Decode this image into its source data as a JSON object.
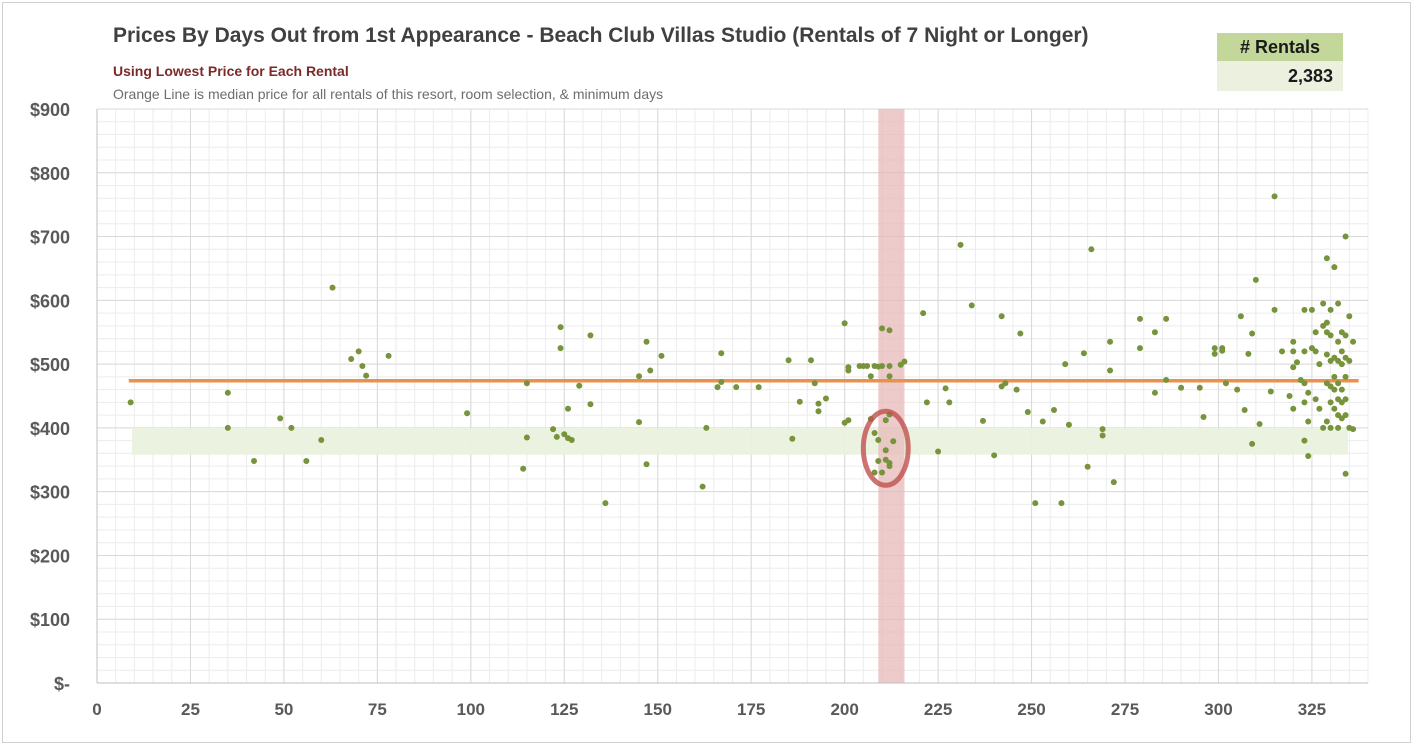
{
  "header": {
    "title": "Prices By Days Out from 1st Appearance - Beach Club Villas Studio (Rentals of 7 Night or Longer)",
    "subtitle": "Using Lowest Price for Each Rental",
    "note": "Orange Line is median price for all rentals of this resort, room selection, & minimum days"
  },
  "rentals_box": {
    "label": "# Rentals",
    "value": "2,383"
  },
  "colors": {
    "points": "#77933c",
    "median_line": "#e8924f",
    "highlight_band": "#ebf1de",
    "vertical_band": "#e6b9b8",
    "circle": "#c0504d",
    "grid": "#d9d9d9",
    "axis_text": "#595959"
  },
  "chart_data": {
    "type": "scatter",
    "title": "Prices By Days Out from 1st Appearance - Beach Club Villas Studio (Rentals of 7 Night or Longer)",
    "xlabel": "",
    "ylabel": "",
    "xlim": [
      0,
      340
    ],
    "ylim": [
      0,
      900
    ],
    "x_ticks": [
      0,
      25,
      50,
      75,
      100,
      125,
      150,
      175,
      200,
      225,
      250,
      275,
      300,
      325
    ],
    "x_tick_labels": [
      "0",
      "25",
      "50",
      "75",
      "100",
      "125",
      "150",
      "175",
      "200",
      "225",
      "250",
      "275",
      "300",
      "325"
    ],
    "y_ticks": [
      0,
      100,
      200,
      300,
      400,
      500,
      600,
      700,
      800,
      900
    ],
    "y_tick_labels": [
      "$-",
      "$100",
      "$200",
      "$300",
      "$400",
      "$500",
      "$600",
      "$700",
      "$800",
      "$900"
    ],
    "grid": true,
    "median_price": 474,
    "highlight_price_range": [
      358,
      400
    ],
    "highlight_days_range": [
      209,
      216
    ],
    "circled_region": {
      "x_center": 211,
      "y_center": 368,
      "x_radius": 6,
      "y_radius": 58
    },
    "points": [
      [
        9,
        440
      ],
      [
        35,
        455
      ],
      [
        35,
        400
      ],
      [
        42,
        348
      ],
      [
        49,
        415
      ],
      [
        52,
        400
      ],
      [
        56,
        348
      ],
      [
        60,
        381
      ],
      [
        63,
        620
      ],
      [
        68,
        508
      ],
      [
        70,
        520
      ],
      [
        71,
        497
      ],
      [
        72,
        482
      ],
      [
        78,
        513
      ],
      [
        99,
        423
      ],
      [
        114,
        336
      ],
      [
        115,
        385
      ],
      [
        115,
        470
      ],
      [
        122,
        398
      ],
      [
        123,
        386
      ],
      [
        124,
        558
      ],
      [
        124,
        525
      ],
      [
        125,
        390
      ],
      [
        126,
        430
      ],
      [
        126,
        384
      ],
      [
        127,
        381
      ],
      [
        129,
        466
      ],
      [
        132,
        545
      ],
      [
        132,
        437
      ],
      [
        136,
        282
      ],
      [
        145,
        481
      ],
      [
        145,
        409
      ],
      [
        147,
        535
      ],
      [
        147,
        343
      ],
      [
        148,
        490
      ],
      [
        151,
        513
      ],
      [
        162,
        308
      ],
      [
        163,
        400
      ],
      [
        166,
        464
      ],
      [
        167,
        517
      ],
      [
        167,
        472
      ],
      [
        171,
        464
      ],
      [
        177,
        464
      ],
      [
        185,
        506
      ],
      [
        186,
        383
      ],
      [
        188,
        441
      ],
      [
        191,
        506
      ],
      [
        192,
        470
      ],
      [
        193,
        438
      ],
      [
        193,
        426
      ],
      [
        195,
        446
      ],
      [
        200,
        564
      ],
      [
        200,
        408
      ],
      [
        201,
        490
      ],
      [
        201,
        495
      ],
      [
        201,
        412
      ],
      [
        204,
        497
      ],
      [
        205,
        497
      ],
      [
        206,
        497
      ],
      [
        207,
        481
      ],
      [
        207,
        414
      ],
      [
        208,
        497
      ],
      [
        208,
        392
      ],
      [
        208,
        330
      ],
      [
        209,
        381
      ],
      [
        209,
        348
      ],
      [
        209,
        496
      ],
      [
        210,
        556
      ],
      [
        210,
        497
      ],
      [
        210,
        330
      ],
      [
        211,
        365
      ],
      [
        211,
        412
      ],
      [
        211,
        350
      ],
      [
        212,
        553
      ],
      [
        212,
        497
      ],
      [
        212,
        481
      ],
      [
        212,
        421
      ],
      [
        212,
        340
      ],
      [
        212,
        345
      ],
      [
        213,
        379
      ],
      [
        215,
        499
      ],
      [
        216,
        504
      ],
      [
        221,
        580
      ],
      [
        222,
        440
      ],
      [
        225,
        363
      ],
      [
        227,
        462
      ],
      [
        228,
        440
      ],
      [
        231,
        687
      ],
      [
        234,
        592
      ],
      [
        237,
        411
      ],
      [
        240,
        357
      ],
      [
        242,
        465
      ],
      [
        242,
        575
      ],
      [
        243,
        470
      ],
      [
        246,
        460
      ],
      [
        247,
        548
      ],
      [
        249,
        425
      ],
      [
        251,
        282
      ],
      [
        253,
        410
      ],
      [
        256,
        428
      ],
      [
        258,
        282
      ],
      [
        259,
        500
      ],
      [
        260,
        405
      ],
      [
        264,
        517
      ],
      [
        265,
        339
      ],
      [
        266,
        680
      ],
      [
        269,
        398
      ],
      [
        269,
        388
      ],
      [
        271,
        535
      ],
      [
        271,
        490
      ],
      [
        272,
        315
      ],
      [
        279,
        571
      ],
      [
        279,
        525
      ],
      [
        283,
        550
      ],
      [
        283,
        455
      ],
      [
        286,
        571
      ],
      [
        286,
        475
      ],
      [
        290,
        463
      ],
      [
        295,
        463
      ],
      [
        296,
        417
      ],
      [
        299,
        516
      ],
      [
        299,
        525
      ],
      [
        301,
        525
      ],
      [
        301,
        521
      ],
      [
        302,
        470
      ],
      [
        305,
        460
      ],
      [
        306,
        575
      ],
      [
        307,
        428
      ],
      [
        308,
        516
      ],
      [
        309,
        375
      ],
      [
        309,
        548
      ],
      [
        310,
        632
      ],
      [
        311,
        406
      ],
      [
        314,
        457
      ],
      [
        315,
        763
      ],
      [
        315,
        585
      ],
      [
        317,
        520
      ],
      [
        319,
        450
      ],
      [
        320,
        520
      ],
      [
        320,
        535
      ],
      [
        320,
        495
      ],
      [
        320,
        430
      ],
      [
        321,
        503
      ],
      [
        322,
        475
      ],
      [
        323,
        470
      ],
      [
        323,
        380
      ],
      [
        323,
        585
      ],
      [
        323,
        520
      ],
      [
        323,
        440
      ],
      [
        324,
        356
      ],
      [
        324,
        410
      ],
      [
        324,
        455
      ],
      [
        325,
        585
      ],
      [
        325,
        525
      ],
      [
        326,
        550
      ],
      [
        326,
        445
      ],
      [
        326,
        520
      ],
      [
        327,
        430
      ],
      [
        327,
        500
      ],
      [
        328,
        560
      ],
      [
        328,
        400
      ],
      [
        328,
        595
      ],
      [
        329,
        565
      ],
      [
        329,
        550
      ],
      [
        329,
        515
      ],
      [
        329,
        470
      ],
      [
        329,
        410
      ],
      [
        329,
        666
      ],
      [
        330,
        585
      ],
      [
        330,
        545
      ],
      [
        330,
        505
      ],
      [
        330,
        465
      ],
      [
        330,
        440
      ],
      [
        330,
        400
      ],
      [
        331,
        510
      ],
      [
        331,
        480
      ],
      [
        331,
        460
      ],
      [
        331,
        430
      ],
      [
        331,
        652
      ],
      [
        332,
        595
      ],
      [
        332,
        535
      ],
      [
        332,
        505
      ],
      [
        332,
        470
      ],
      [
        332,
        445
      ],
      [
        332,
        420
      ],
      [
        332,
        400
      ],
      [
        333,
        550
      ],
      [
        333,
        520
      ],
      [
        333,
        500
      ],
      [
        333,
        460
      ],
      [
        333,
        440
      ],
      [
        333,
        415
      ],
      [
        334,
        545
      ],
      [
        334,
        510
      ],
      [
        334,
        480
      ],
      [
        334,
        445
      ],
      [
        334,
        420
      ],
      [
        334,
        700
      ],
      [
        334,
        328
      ],
      [
        335,
        575
      ],
      [
        335,
        505
      ],
      [
        335,
        400
      ],
      [
        336,
        535
      ],
      [
        336,
        398
      ]
    ]
  }
}
